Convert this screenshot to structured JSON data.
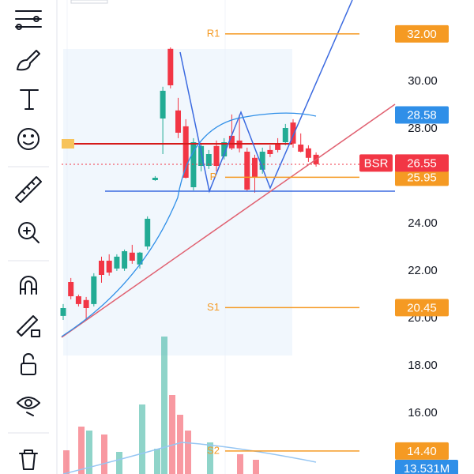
{
  "chart_data": {
    "type": "candlestick",
    "ylim": [
      13.43,
      33.43
    ],
    "yticks": [
      {
        "value": 30,
        "label": "30.00"
      },
      {
        "value": 28,
        "label": "28.00"
      },
      {
        "value": 24,
        "label": "24.00"
      },
      {
        "value": 22,
        "label": "22.00"
      },
      {
        "value": 20,
        "label": "20.00"
      },
      {
        "value": 18,
        "label": "18.00"
      },
      {
        "value": 16,
        "label": "16.00"
      }
    ],
    "candles": [
      {
        "o": 20.1,
        "h": 20.6,
        "l": 19.93,
        "c": 20.43
      },
      {
        "o": 21.53,
        "h": 21.7,
        "l": 20.8,
        "c": 20.93
      },
      {
        "o": 20.93,
        "h": 21.0,
        "l": 20.5,
        "c": 20.6
      },
      {
        "o": 20.77,
        "h": 20.9,
        "l": 19.93,
        "c": 20.43
      },
      {
        "o": 20.6,
        "h": 21.9,
        "l": 20.5,
        "c": 21.77
      },
      {
        "o": 22.43,
        "h": 22.6,
        "l": 21.5,
        "c": 21.83
      },
      {
        "o": 22.43,
        "h": 22.7,
        "l": 21.8,
        "c": 21.93
      },
      {
        "o": 22.1,
        "h": 22.7,
        "l": 22.0,
        "c": 22.6
      },
      {
        "o": 22.1,
        "h": 22.9,
        "l": 22.0,
        "c": 22.83
      },
      {
        "o": 22.77,
        "h": 23.1,
        "l": 22.3,
        "c": 22.43
      },
      {
        "o": 22.27,
        "h": 22.8,
        "l": 22.1,
        "c": 22.77
      },
      {
        "o": 23.03,
        "h": 24.3,
        "l": 22.9,
        "c": 24.2
      },
      {
        "o": 25.83,
        "h": 26.0,
        "l": 25.8,
        "c": 25.93
      },
      {
        "o": 28.43,
        "h": 29.77,
        "l": 26.93,
        "c": 29.6
      },
      {
        "o": 31.37,
        "h": 31.43,
        "l": 29.7,
        "c": 29.83
      },
      {
        "o": 28.77,
        "h": 29.3,
        "l": 27.6,
        "c": 27.83
      },
      {
        "o": 28.1,
        "h": 28.4,
        "l": 25.9,
        "c": 25.93
      },
      {
        "o": 25.53,
        "h": 27.6,
        "l": 25.4,
        "c": 27.43
      },
      {
        "o": 26.43,
        "h": 27.4,
        "l": 26.2,
        "c": 27.27
      },
      {
        "o": 26.43,
        "h": 27.1,
        "l": 26.3,
        "c": 26.93
      },
      {
        "o": 27.27,
        "h": 27.5,
        "l": 26.2,
        "c": 26.43
      },
      {
        "o": 26.83,
        "h": 27.6,
        "l": 26.7,
        "c": 27.43
      },
      {
        "o": 27.7,
        "h": 28.6,
        "l": 27.1,
        "c": 27.17
      },
      {
        "o": 27.5,
        "h": 28.6,
        "l": 27.0,
        "c": 27.17
      },
      {
        "o": 27.03,
        "h": 27.2,
        "l": 25.37,
        "c": 25.43
      },
      {
        "o": 26.77,
        "h": 26.9,
        "l": 25.3,
        "c": 25.93
      },
      {
        "o": 26.27,
        "h": 27.2,
        "l": 26.1,
        "c": 27.03
      },
      {
        "o": 27.1,
        "h": 27.3,
        "l": 26.8,
        "c": 26.93
      },
      {
        "o": 27.33,
        "h": 27.6,
        "l": 27.0,
        "c": 27.1
      },
      {
        "o": 27.43,
        "h": 28.2,
        "l": 27.3,
        "c": 28.03
      },
      {
        "o": 28.26,
        "h": 28.4,
        "l": 27.2,
        "c": 27.37
      },
      {
        "o": 27.33,
        "h": 27.8,
        "l": 27.0,
        "c": 27.03
      },
      {
        "o": 27.17,
        "h": 27.3,
        "l": 26.6,
        "c": 26.77
      },
      {
        "o": 26.9,
        "h": 27.0,
        "l": 26.4,
        "c": 26.5
      }
    ],
    "levels": [
      {
        "name": "R1",
        "value": 32,
        "label": "32.00"
      },
      {
        "name": "P",
        "value": 25.95,
        "label": "25.95"
      },
      {
        "name": "S1",
        "value": 20.45,
        "label": "20.45"
      },
      {
        "name": "S2",
        "value": 14.4,
        "label": "14.40"
      }
    ],
    "price_badges": [
      {
        "value": 28.58,
        "label": "28.58",
        "color": "#2f8fe8"
      },
      {
        "value": 26.55,
        "label": "26.55",
        "color": "#f23645",
        "tag": "BSR"
      }
    ],
    "level_color": "#f59a23",
    "up_color": "#22ab94",
    "down_color": "#f23645",
    "volume_label": "13.531M"
  }
}
